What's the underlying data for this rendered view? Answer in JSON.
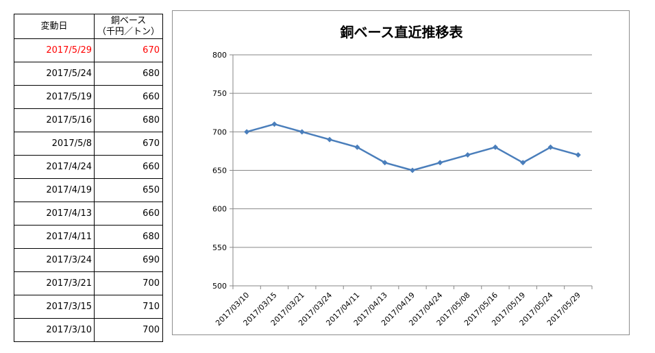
{
  "table": {
    "headers": {
      "date": "変動日",
      "price_line1": "銅ベース",
      "price_line2": "（千円／トン）"
    },
    "rows": [
      {
        "date": "2017/5/29",
        "price": "670"
      },
      {
        "date": "2017/5/24",
        "price": "680"
      },
      {
        "date": "2017/5/19",
        "price": "660"
      },
      {
        "date": "2017/5/16",
        "price": "680"
      },
      {
        "date": "2017/5/8",
        "price": "670"
      },
      {
        "date": "2017/4/24",
        "price": "660"
      },
      {
        "date": "2017/4/19",
        "price": "650"
      },
      {
        "date": "2017/4/13",
        "price": "660"
      },
      {
        "date": "2017/4/11",
        "price": "680"
      },
      {
        "date": "2017/3/24",
        "price": "690"
      },
      {
        "date": "2017/3/21",
        "price": "700"
      },
      {
        "date": "2017/3/15",
        "price": "710"
      },
      {
        "date": "2017/3/10",
        "price": "700"
      }
    ],
    "highlight_color": "#ff0000"
  },
  "chart_data": {
    "type": "line",
    "title": "銅ベース直近推移表",
    "xlabel": "",
    "ylabel": "",
    "categories": [
      "2017/03/10",
      "2017/03/15",
      "2017/03/21",
      "2017/03/24",
      "2017/04/11",
      "2017/04/13",
      "2017/04/19",
      "2017/04/24",
      "2017/05/08",
      "2017/05/16",
      "2017/05/19",
      "2017/05/24",
      "2017/05/29"
    ],
    "values": [
      700,
      710,
      700,
      690,
      680,
      660,
      650,
      660,
      670,
      680,
      660,
      680,
      670
    ],
    "ylim": [
      500,
      800
    ],
    "yticks": [
      500,
      550,
      600,
      650,
      700,
      750,
      800
    ],
    "grid": true,
    "legend": "none",
    "line_color": "#4a7ebb"
  }
}
